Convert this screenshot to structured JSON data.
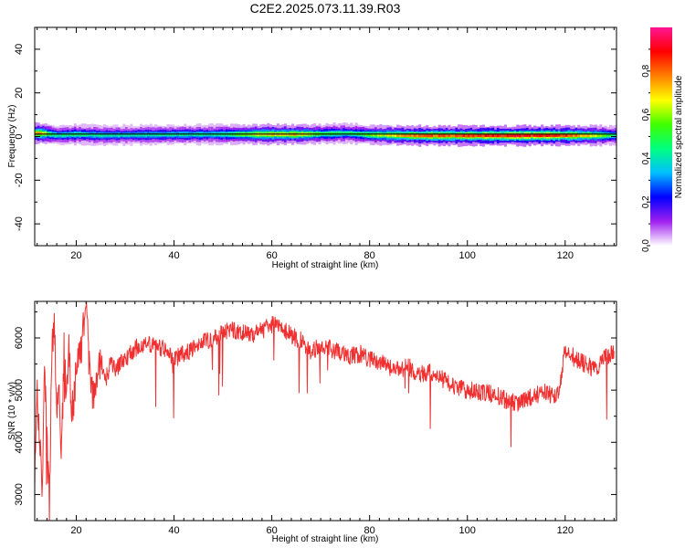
{
  "page": {
    "title": "C2E2.2025.073.11.39.R03"
  },
  "chart_data": [
    {
      "type": "heatmap",
      "title": "C2E2.2025.073.11.39.R03",
      "xlabel": "Height of straight line (km)",
      "ylabel": "Frequency (Hz)",
      "xlim": [
        11.5,
        130.5
      ],
      "ylim": [
        -50,
        50
      ],
      "x_ticks": [
        20,
        40,
        60,
        80,
        100,
        120
      ],
      "y_ticks": [
        40,
        20,
        0,
        -20,
        -40
      ],
      "colorbar": {
        "label": "Normalized spectral amplitude",
        "range": [
          0,
          1
        ],
        "ticks": [
          "0.0",
          "0.2",
          "0.4",
          "0.6",
          "0.8"
        ],
        "colors": [
          "#ffffff",
          "#a020f0",
          "#0000ff",
          "#00bfff",
          "#00ff7f",
          "#40ff00",
          "#ffff00",
          "#ff7f00",
          "#ff0000",
          "#ff1493"
        ]
      },
      "ridge": {
        "description": "narrow band centered near 0 Hz",
        "x": [
          12,
          14,
          16,
          20,
          25,
          30,
          40,
          50,
          55,
          60,
          65,
          70,
          75,
          80,
          85,
          90,
          95,
          100,
          105,
          110,
          115,
          120,
          125,
          130
        ],
        "center_hz": [
          1.5,
          1.2,
          0.6,
          1.0,
          0.6,
          0.7,
          0.9,
          1.0,
          1.0,
          1.0,
          1.0,
          1.2,
          1.5,
          0.8,
          0.6,
          0.4,
          0.4,
          0.4,
          0.4,
          0.4,
          0.5,
          0.5,
          0.5,
          0.5
        ],
        "amplitude": [
          0.8,
          0.55,
          0.42,
          0.48,
          0.42,
          0.42,
          0.42,
          0.45,
          0.62,
          0.7,
          0.72,
          0.52,
          0.48,
          0.58,
          0.72,
          0.8,
          0.82,
          0.85,
          0.88,
          0.9,
          0.88,
          0.86,
          0.7,
          0.45
        ]
      }
    },
    {
      "type": "line",
      "xlabel": "Height of straight line (km)",
      "ylabel": "SNR (10 * v/v)",
      "xlim": [
        11.5,
        130.5
      ],
      "ylim": [
        2500,
        6700
      ],
      "x_ticks": [
        20,
        40,
        60,
        80,
        100,
        120
      ],
      "y_ticks": [
        3000,
        4000,
        5000,
        6000
      ],
      "color": "#f03030",
      "series": [
        {
          "x": [
            11.5,
            12,
            12.5,
            13,
            13.5,
            14,
            14.5,
            15,
            15.5,
            16,
            16.5,
            17,
            17.5,
            18,
            18.5,
            19,
            20,
            21,
            22,
            23,
            24,
            25,
            26,
            27,
            28,
            30,
            32,
            34,
            36,
            38,
            40,
            42,
            44,
            46,
            48,
            50,
            52,
            54,
            56,
            58,
            60,
            62,
            64,
            66,
            68,
            70,
            72,
            74,
            76,
            78,
            80,
            82,
            84,
            86,
            88,
            90,
            92,
            94,
            96,
            98,
            100,
            102,
            104,
            106,
            108,
            110,
            112,
            114,
            116,
            118,
            119,
            120,
            122,
            124,
            126,
            128,
            130
          ],
          "values": [
            3300,
            5100,
            4000,
            3000,
            5500,
            4200,
            2700,
            5600,
            6400,
            4500,
            5200,
            3700,
            5800,
            4700,
            6050,
            4400,
            5300,
            5800,
            6600,
            5000,
            4900,
            5600,
            5200,
            5500,
            5400,
            5600,
            5800,
            5900,
            5850,
            5800,
            5600,
            5700,
            5800,
            5900,
            6000,
            6100,
            6150,
            6100,
            6050,
            6150,
            6250,
            6200,
            6050,
            5950,
            5750,
            5850,
            5800,
            5700,
            5650,
            5700,
            5600,
            5550,
            5450,
            5400,
            5450,
            5300,
            5350,
            5250,
            5150,
            5050,
            5000,
            4980,
            4950,
            4900,
            4800,
            4750,
            4820,
            4900,
            4950,
            4850,
            5100,
            5800,
            5600,
            5500,
            5400,
            5600,
            5750
          ]
        }
      ]
    }
  ]
}
